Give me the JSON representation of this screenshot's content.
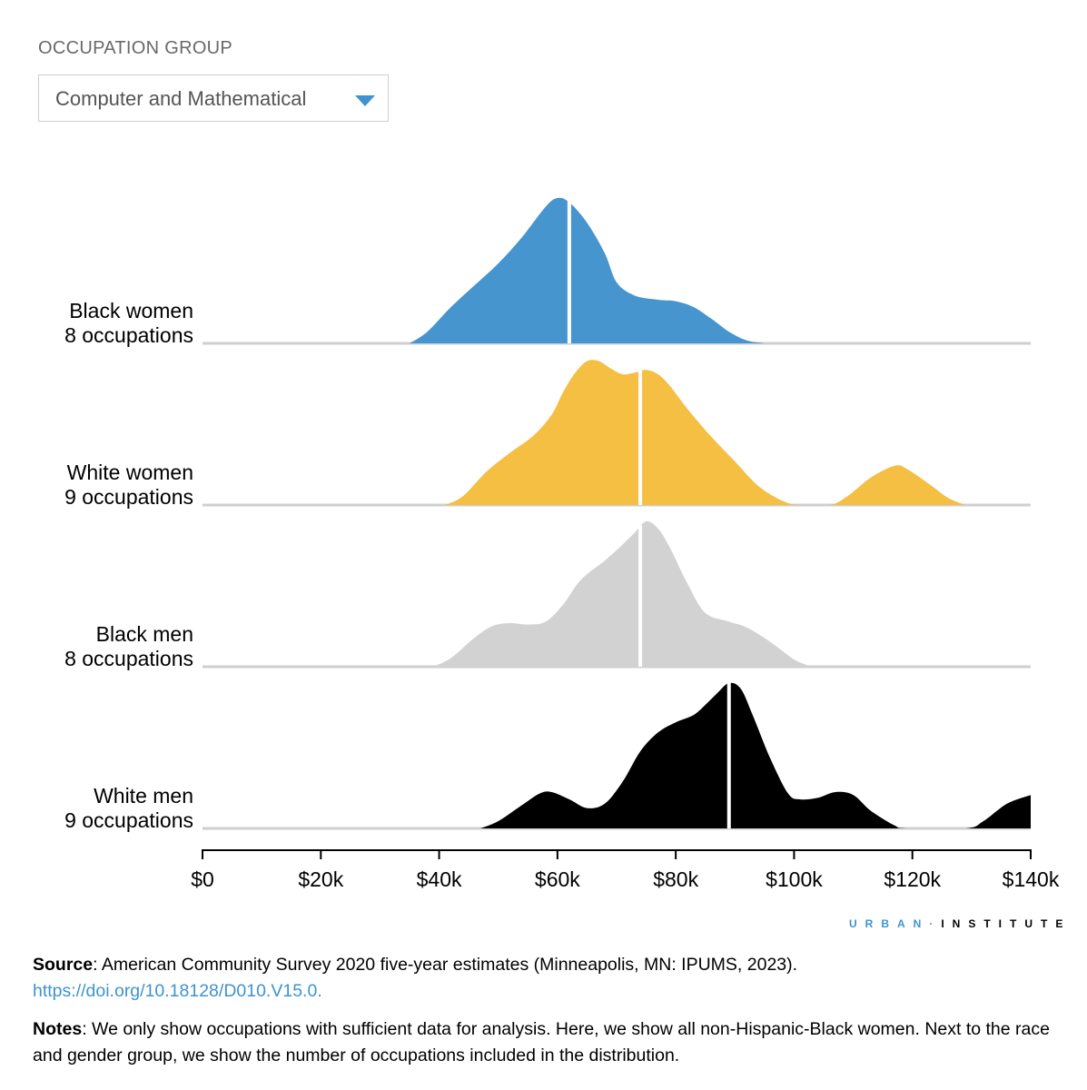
{
  "filter": {
    "label": "OCCUPATION GROUP",
    "selected": "Computer and Mathematical",
    "caret_icon": "triangle-down-icon",
    "caret_color": "#3e93d0"
  },
  "chart_data": {
    "type": "area",
    "subtype": "ridgeline",
    "x_unit": "annual earnings (USD)",
    "xlim": [
      0,
      140000
    ],
    "x_ticks": [
      0,
      20000,
      40000,
      60000,
      80000,
      100000,
      120000,
      140000
    ],
    "x_tick_labels": [
      "$0",
      "$20k",
      "$40k",
      "$60k",
      "$80k",
      "$100k",
      "$120k",
      "$140k"
    ],
    "series": [
      {
        "name": "Black women",
        "subtitle": "8 occupations",
        "color": "#4695ce",
        "median": 62000,
        "points": [
          [
            35000,
            0
          ],
          [
            38000,
            0.08
          ],
          [
            42000,
            0.25
          ],
          [
            46000,
            0.4
          ],
          [
            50000,
            0.55
          ],
          [
            54000,
            0.73
          ],
          [
            58000,
            0.94
          ],
          [
            60000,
            1.0
          ],
          [
            62000,
            0.97
          ],
          [
            65000,
            0.83
          ],
          [
            68000,
            0.62
          ],
          [
            70000,
            0.42
          ],
          [
            73000,
            0.33
          ],
          [
            77000,
            0.3
          ],
          [
            80000,
            0.29
          ],
          [
            83000,
            0.25
          ],
          [
            86000,
            0.17
          ],
          [
            89000,
            0.08
          ],
          [
            92000,
            0.02
          ],
          [
            95000,
            0
          ]
        ]
      },
      {
        "name": "White women",
        "subtitle": "9 occupations",
        "color": "#f4bf42",
        "median": 74000,
        "points": [
          [
            41000,
            0
          ],
          [
            44000,
            0.06
          ],
          [
            48000,
            0.23
          ],
          [
            52000,
            0.36
          ],
          [
            56000,
            0.48
          ],
          [
            59000,
            0.62
          ],
          [
            61000,
            0.78
          ],
          [
            63000,
            0.91
          ],
          [
            65000,
            0.99
          ],
          [
            67000,
            0.99
          ],
          [
            69000,
            0.94
          ],
          [
            71000,
            0.9
          ],
          [
            73000,
            0.91
          ],
          [
            75000,
            0.93
          ],
          [
            77000,
            0.9
          ],
          [
            79000,
            0.82
          ],
          [
            82000,
            0.66
          ],
          [
            86000,
            0.47
          ],
          [
            90000,
            0.3
          ],
          [
            94000,
            0.13
          ],
          [
            98000,
            0.03
          ],
          [
            101000,
            0
          ],
          [
            106000,
            0
          ],
          [
            109000,
            0.06
          ],
          [
            113000,
            0.19
          ],
          [
            117000,
            0.27
          ],
          [
            119000,
            0.25
          ],
          [
            123000,
            0.14
          ],
          [
            126000,
            0.05
          ],
          [
            129000,
            0
          ]
        ]
      },
      {
        "name": "Black men",
        "subtitle": "8 occupations",
        "color": "#d2d2d2",
        "median": 74000,
        "points": [
          [
            39000,
            0
          ],
          [
            42000,
            0.06
          ],
          [
            46000,
            0.2
          ],
          [
            49000,
            0.28
          ],
          [
            52000,
            0.3
          ],
          [
            55000,
            0.29
          ],
          [
            58000,
            0.31
          ],
          [
            61000,
            0.43
          ],
          [
            64000,
            0.6
          ],
          [
            68000,
            0.73
          ],
          [
            71000,
            0.84
          ],
          [
            73000,
            0.92
          ],
          [
            75000,
            1.0
          ],
          [
            77000,
            0.95
          ],
          [
            79000,
            0.82
          ],
          [
            82000,
            0.57
          ],
          [
            85000,
            0.37
          ],
          [
            89000,
            0.31
          ],
          [
            92000,
            0.27
          ],
          [
            96000,
            0.17
          ],
          [
            100000,
            0.05
          ],
          [
            103000,
            0
          ]
        ]
      },
      {
        "name": "White men",
        "subtitle": "9 occupations",
        "color": "#000000",
        "median": 89000,
        "points": [
          [
            47000,
            0
          ],
          [
            50000,
            0.05
          ],
          [
            54000,
            0.16
          ],
          [
            57000,
            0.24
          ],
          [
            59000,
            0.25
          ],
          [
            62000,
            0.2
          ],
          [
            65000,
            0.14
          ],
          [
            68000,
            0.17
          ],
          [
            71000,
            0.32
          ],
          [
            74000,
            0.53
          ],
          [
            77000,
            0.66
          ],
          [
            80000,
            0.73
          ],
          [
            83000,
            0.78
          ],
          [
            85000,
            0.85
          ],
          [
            87000,
            0.93
          ],
          [
            89000,
            1.0
          ],
          [
            91000,
            0.96
          ],
          [
            93000,
            0.78
          ],
          [
            96000,
            0.48
          ],
          [
            99000,
            0.24
          ],
          [
            101000,
            0.2
          ],
          [
            104000,
            0.21
          ],
          [
            107000,
            0.25
          ],
          [
            110000,
            0.23
          ],
          [
            113000,
            0.12
          ],
          [
            117000,
            0.02
          ],
          [
            119000,
            0
          ],
          [
            129000,
            0
          ],
          [
            132000,
            0.05
          ],
          [
            136000,
            0.17
          ],
          [
            140000,
            0.23
          ]
        ]
      }
    ]
  },
  "brand": {
    "part1": "URBAN",
    "separator": "·",
    "part2": "INSTITUTE"
  },
  "source": {
    "label": "Source",
    "text": ": American Community Survey 2020 five-year estimates (Minneapolis, MN: IPUMS, 2023). ",
    "link": "https://doi.org/10.18128/D010.V15.0."
  },
  "notes": {
    "label": "Notes",
    "text": ": We only show occupations with sufficient data for analysis. Here, we show all non-Hispanic-Black women. Next to the race and gender group, we show the number of occupations included in the distribution."
  }
}
